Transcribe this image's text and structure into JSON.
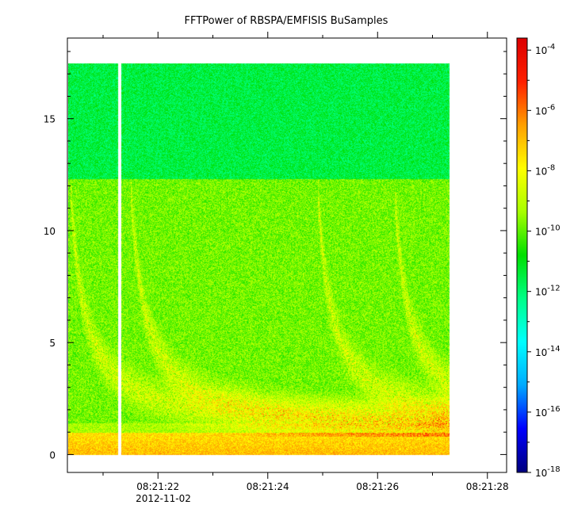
{
  "chart_data": {
    "type": "heatmap",
    "title": "FFTPower of RBSPA/EMFISIS  BuSamples",
    "xlabel": "",
    "ylabel": "",
    "x_ticks": [
      "08:21:22",
      "08:21:24",
      "08:21:26",
      "08:21:28"
    ],
    "x_date_label": "2012-11-02",
    "x_tick_values_sec": [
      0,
      2,
      4,
      6
    ],
    "x_range_sec": [
      -1.65,
      6.35
    ],
    "x_minor_step_sec": 1,
    "y_ticks": [
      0,
      5,
      10,
      15
    ],
    "ylim": [
      -0.8,
      18.6
    ],
    "colorbar": {
      "scale": "log",
      "range_exp": [
        -18,
        -3.6
      ],
      "tick_exponents": [
        -18,
        -16,
        -14,
        -12,
        -10,
        -8,
        -6,
        -4
      ],
      "colormap": [
        "#00007f",
        "#0000ff",
        "#00aaff",
        "#00ffff",
        "#00ff88",
        "#00e000",
        "#a8ff00",
        "#ffff00",
        "#ffa000",
        "#ff2000",
        "#dd0000"
      ]
    },
    "data_extent": {
      "x_start_sec": -1.65,
      "x_end_sec": 5.3,
      "f_min": 0,
      "f_max": 17.5,
      "gap_x_sec": -0.7,
      "upper_band_from": 12.3
    },
    "background_level_exp": {
      "low_band_0_to_1": -7.5,
      "mid_band_1_to_12": -9.8,
      "high_band_12_to_17_5": -11.5
    },
    "burst_onsets_sec": [
      -1.6,
      -0.5,
      2.9,
      4.3
    ]
  }
}
